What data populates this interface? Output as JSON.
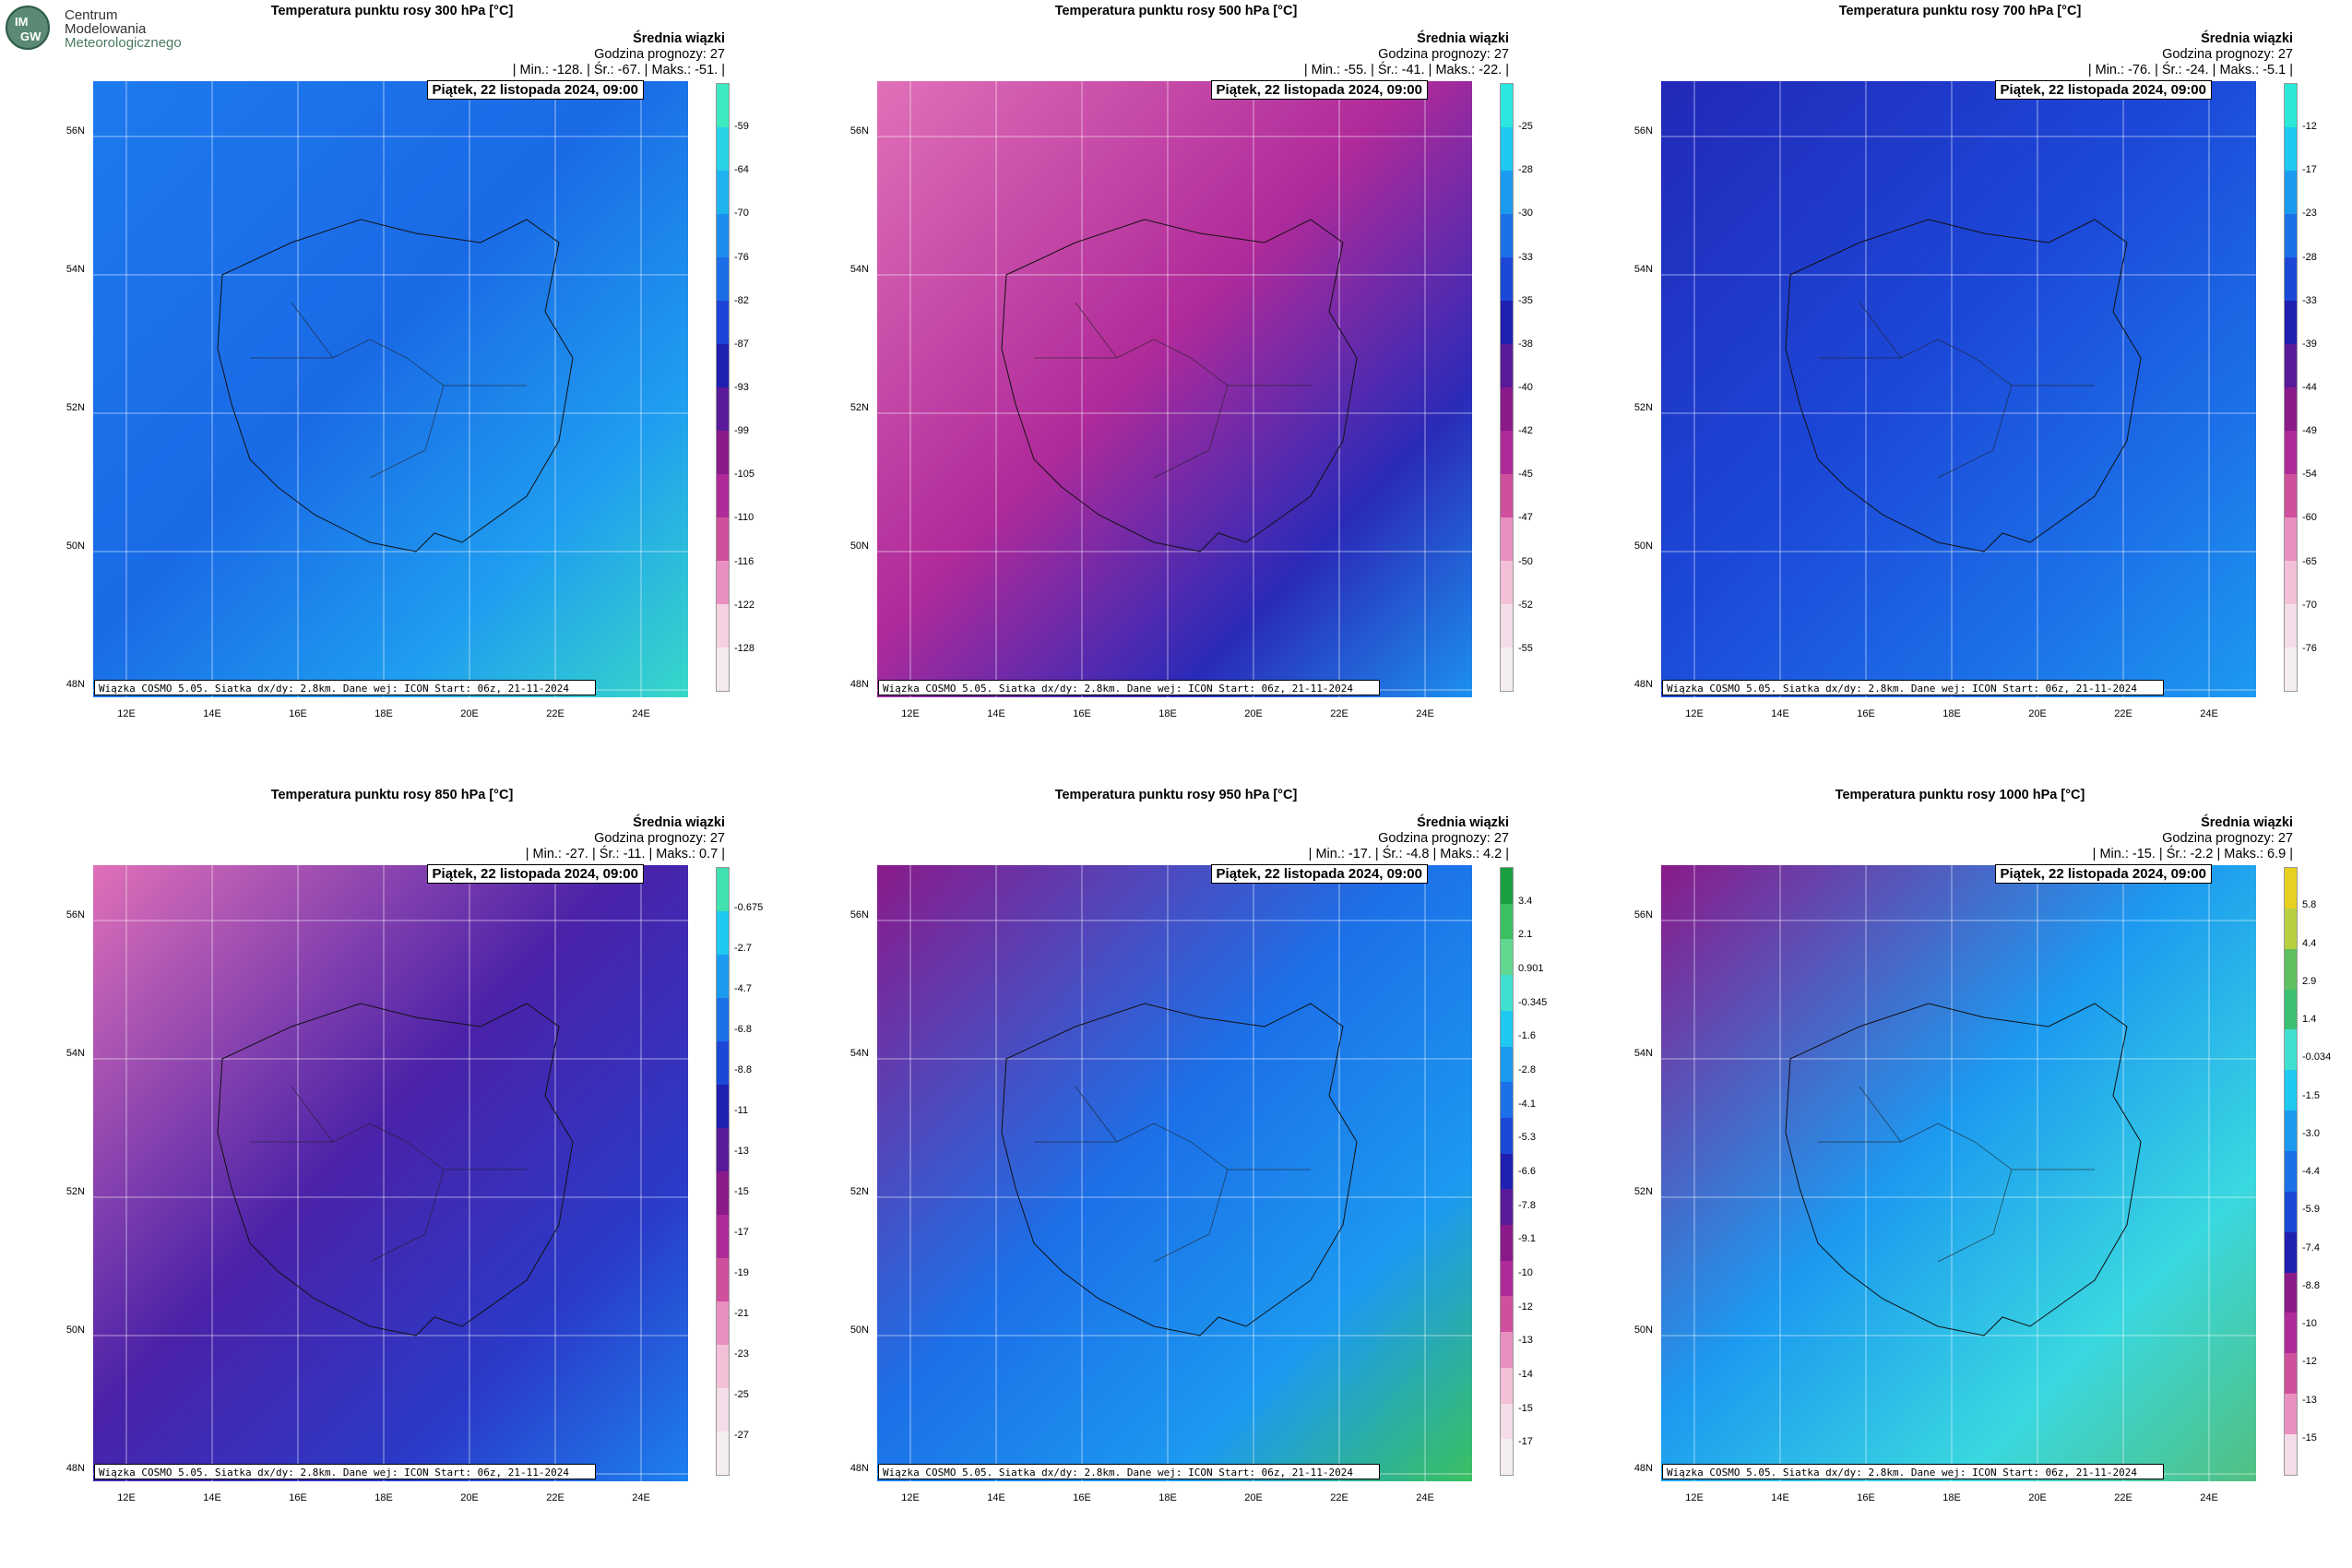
{
  "logo": {
    "letters": [
      "IM",
      "GW"
    ],
    "lines": [
      "Centrum",
      "Modelowania",
      "Meteorologicznego"
    ]
  },
  "common": {
    "subtitle": "Średnia wiązki",
    "forecast_hour": "Godzina prognozy: 27",
    "date": "Piątek, 22 listopada 2024, 09:00",
    "footer": "Wiązka COSMO 5.05. Siatka dx/dy: 2.8km. Dane wej: ICON Start: 06z, 21-11-2024",
    "lat_labels": [
      "56N",
      "54N",
      "52N",
      "50N",
      "48N"
    ],
    "lon_labels": [
      "12E",
      "14E",
      "16E",
      "18E",
      "20E",
      "22E",
      "24E"
    ]
  },
  "panels": [
    {
      "title": "Temperatura punktu rosy 300 hPa [°C]",
      "stats": "| Min.:   -128. | Śr.:    -67. | Maks.:    -51. |",
      "scale": [
        "-59",
        "-64",
        "-70",
        "-76",
        "-82",
        "-87",
        "-93",
        "-99",
        "-105",
        "-110",
        "-116",
        "-122",
        "-128"
      ],
      "palette": [
        "#3ee8c0",
        "#2ad2e8",
        "#1fb4f0",
        "#1d8ef0",
        "#1c6ee8",
        "#1c45d8",
        "#2020b0",
        "#5a1a9a",
        "#8a1a8a",
        "#b02a9a",
        "#d0509e",
        "#e890c0",
        "#f4d0e0",
        "#f4eaf0"
      ],
      "bg": [
        "#1d7aee",
        "#1a6ae6",
        "#1f9ef0",
        "#38d8c8"
      ]
    },
    {
      "title": "Temperatura punktu rosy 500 hPa [°C]",
      "stats": "| Min.:    -55. | Śr.:    -41. | Maks.:    -22. |",
      "scale": [
        "-25",
        "-28",
        "-30",
        "-33",
        "-35",
        "-38",
        "-40",
        "-42",
        "-45",
        "-47",
        "-50",
        "-52",
        "-55"
      ],
      "palette": [
        "#2ae8e0",
        "#1fc8f0",
        "#1c9af0",
        "#1c70e8",
        "#1c48d8",
        "#2020b0",
        "#5a1a9a",
        "#8a1a8a",
        "#b02a9a",
        "#d0509e",
        "#e890c0",
        "#f4c0d8",
        "#f4dde8",
        "#f4eef2"
      ],
      "bg": [
        "#e070b8",
        "#b02a9a",
        "#2a2ab8",
        "#1c90f0"
      ]
    },
    {
      "title": "Temperatura punktu rosy 700 hPa [°C]",
      "stats": "| Min.:    -76. | Śr.:    -24. | Maks.:    -5.1 |",
      "scale": [
        "-12",
        "-17",
        "-23",
        "-28",
        "-33",
        "-39",
        "-44",
        "-49",
        "-54",
        "-60",
        "-65",
        "-70",
        "-76"
      ],
      "palette": [
        "#2ae8d8",
        "#1fc8f0",
        "#1c9af0",
        "#1c70e8",
        "#1c48d8",
        "#2020b0",
        "#5a1a9a",
        "#8a1a8a",
        "#b02a9a",
        "#d0509e",
        "#e890c0",
        "#f4c0d8",
        "#f4dde8",
        "#f4eef2"
      ],
      "bg": [
        "#2228b8",
        "#1c48d8",
        "#1c70e8",
        "#1d9af0"
      ]
    },
    {
      "title": "Temperatura punktu rosy 850 hPa [°C]",
      "stats": "| Min.:    -27. | Śr.:    -11. | Maks.:    0.7 |",
      "scale": [
        "-0.675",
        "-2.7",
        "-4.7",
        "-6.8",
        "-8.8",
        "-11",
        "-13",
        "-15",
        "-17",
        "-19",
        "-21",
        "-23",
        "-25",
        "-27"
      ],
      "palette": [
        "#40e0b0",
        "#1fc8f0",
        "#1c9af0",
        "#1c70e8",
        "#1c48d8",
        "#2020b0",
        "#5a1a9a",
        "#8a1a8a",
        "#b02a9a",
        "#d0509e",
        "#e890c0",
        "#f4c0d8",
        "#f4dde8",
        "#f4eef2"
      ],
      "bg": [
        "#e070b8",
        "#4a22a8",
        "#2a3ac8",
        "#1c80f0"
      ]
    },
    {
      "title": "Temperatura punktu rosy 950 hPa [°C]",
      "stats": "| Min.:    -17. | Śr.:    -4.8 | Maks.:    4.2 |",
      "scale": [
        "3.4",
        "2.1",
        "0.901",
        "-0.345",
        "-1.6",
        "-2.8",
        "-4.1",
        "-5.3",
        "-6.6",
        "-7.8",
        "-9.1",
        "-10",
        "-12",
        "-13",
        "-14",
        "-15",
        "-17"
      ],
      "palette": [
        "#1aa040",
        "#3ac060",
        "#60d890",
        "#40e0d0",
        "#1fc8f0",
        "#1c9af0",
        "#1c70e8",
        "#1c48d8",
        "#2020b0",
        "#5a1a9a",
        "#8a1a8a",
        "#b02a9a",
        "#d0509e",
        "#e890c0",
        "#f4c0d8",
        "#f4dde8",
        "#f4eef2"
      ],
      "bg": [
        "#8a1a8a",
        "#1c70e8",
        "#1c9af0",
        "#3ac060"
      ]
    },
    {
      "title": "Temperatura punktu rosy 1000 hPa [°C]",
      "stats": "| Min.:    -15. | Śr.:    -2.2 | Maks.:    6.9 |",
      "scale": [
        "5.8",
        "4.4",
        "2.9",
        "1.4",
        "-0.034",
        "-1.5",
        "-3.0",
        "-4.4",
        "-5.9",
        "-7.4",
        "-8.8",
        "-10",
        "-12",
        "-13",
        "-15"
      ],
      "palette": [
        "#e8d020",
        "#b8d040",
        "#60c060",
        "#3ac070",
        "#40e0d0",
        "#1fc8f0",
        "#1c9af0",
        "#1c70e8",
        "#1c48d8",
        "#2020b0",
        "#8a1a8a",
        "#b02a9a",
        "#d0509e",
        "#e890c0",
        "#f4dde8"
      ],
      "bg": [
        "#8a1a8a",
        "#1c9af0",
        "#3ad8e0",
        "#50c080"
      ]
    }
  ]
}
